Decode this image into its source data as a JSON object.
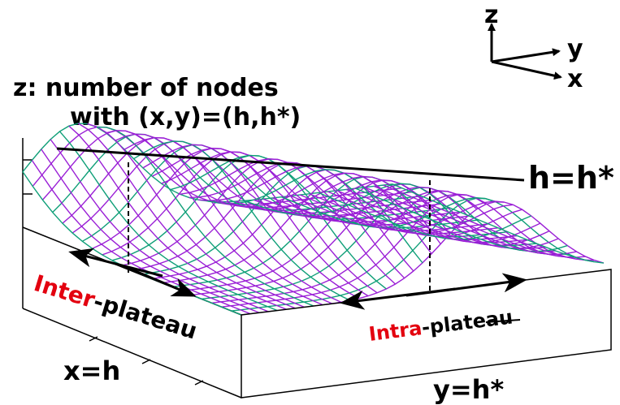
{
  "axes": {
    "z": "z",
    "y": "y",
    "x": "x"
  },
  "z_label": {
    "line1": "z: number of nodes",
    "line2": "with (x,y)=(h,h*)"
  },
  "ridge_label": "h=h*",
  "inter": {
    "highlight": "Inter",
    "rest": "-plateau"
  },
  "intra": {
    "highlight": "Intra",
    "rest": "-plateau"
  },
  "x_label": "x=h",
  "y_label": "y=h*",
  "colors": {
    "surface_top": "#9a1fd6",
    "surface_under": "#0f9f78",
    "highlight": "#e3000f"
  }
}
